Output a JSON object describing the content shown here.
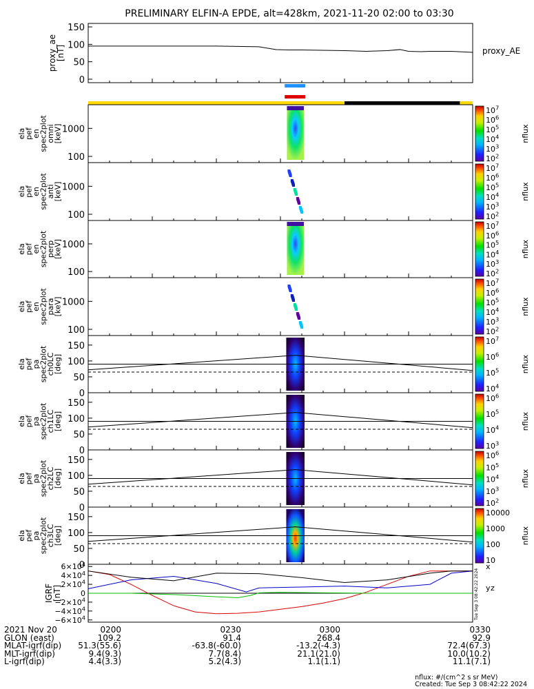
{
  "title": "PRELIMINARY ELFIN-A EPDE, alt=428km, 2021-11-20 02:00 to 03:30",
  "colors": {
    "ae_line": "#000000",
    "bar_blue": "#1e90ff",
    "bar_red": "#e00000",
    "sunlit": "#ffd800",
    "shadow": "#000000",
    "bx": "#e00000",
    "by": "#00c000",
    "bz": "#0000cc",
    "b_total": "#000000"
  },
  "chart_data": [
    {
      "type": "line",
      "id": "proxy_ae",
      "ylabel": "proxy_ae [nT]",
      "legend": "proxy_AE",
      "ylim": [
        -10,
        160
      ],
      "yticks": [
        "150",
        "100",
        "50",
        "0"
      ],
      "x_minutes": [
        0,
        10,
        20,
        30,
        40,
        44,
        47,
        50,
        55,
        60,
        65,
        70,
        73,
        75,
        78,
        80,
        85,
        90
      ],
      "values": [
        95,
        95,
        95,
        95,
        93,
        85,
        84,
        84,
        83,
        82,
        80,
        82,
        85,
        80,
        79,
        80,
        80,
        77
      ]
    },
    {
      "type": "heatmap",
      "id": "en_omni",
      "ylabel": "ela pef en spec2plot omni [keV]",
      "yscale": "log",
      "ylim": [
        60,
        7000
      ],
      "yticks": [
        "1000",
        "100"
      ],
      "cbar_labels": [
        "10^7",
        "10^6",
        "10^5",
        "10^4",
        "10^3",
        "10^2"
      ],
      "cbar_title": "nflux",
      "profile": "full"
    },
    {
      "type": "heatmap",
      "id": "en_anti",
      "ylabel": "ela pef en spec2plot anti [keV]",
      "yscale": "log",
      "ylim": [
        60,
        7000
      ],
      "yticks": [
        "1000",
        "100"
      ],
      "cbar_labels": [
        "10^7",
        "10^6",
        "10^5",
        "10^4",
        "10^3",
        "10^2"
      ],
      "cbar_title": "nflux",
      "profile": "sparse"
    },
    {
      "type": "heatmap",
      "id": "en_perp",
      "ylabel": "ela pef en spec2plot perp [keV]",
      "yscale": "log",
      "ylim": [
        60,
        7000
      ],
      "yticks": [
        "1000",
        "100"
      ],
      "cbar_labels": [
        "10^7",
        "10^6",
        "10^5",
        "10^4",
        "10^3",
        "10^2"
      ],
      "cbar_title": "nflux",
      "profile": "full"
    },
    {
      "type": "heatmap",
      "id": "en_para",
      "ylabel": "ela pef en spec2plot para [keV]",
      "yscale": "log",
      "ylim": [
        60,
        7000
      ],
      "yticks": [
        "1000",
        "100"
      ],
      "cbar_labels": [
        "10^7",
        "10^6",
        "10^5",
        "10^4",
        "10^3",
        "10^2"
      ],
      "cbar_title": "nflux",
      "profile": "sparse"
    },
    {
      "type": "heatmap",
      "id": "pa_ch0LC",
      "ylabel": "ela pef pa spec2plot ch0LC [deg]",
      "ylim": [
        0,
        180
      ],
      "yticks": [
        "150",
        "100",
        "50",
        "0"
      ],
      "cbar_labels": [
        "10^7",
        "10^6",
        "10^5",
        "10^4"
      ],
      "cbar_title": "nflux",
      "profile": "pa"
    },
    {
      "type": "heatmap",
      "id": "pa_ch1LC",
      "ylabel": "ela pef pa spec2plot ch1LC [deg]",
      "ylim": [
        0,
        180
      ],
      "yticks": [
        "150",
        "100",
        "50",
        "0"
      ],
      "cbar_labels": [
        "10^6",
        "10^5",
        "10^4",
        "10^3"
      ],
      "cbar_title": "nflux",
      "profile": "pa"
    },
    {
      "type": "heatmap",
      "id": "pa_ch2LC",
      "ylabel": "ela pef pa spec2plot ch2LC [deg]",
      "ylim": [
        0,
        180
      ],
      "yticks": [
        "150",
        "100",
        "50",
        "0"
      ],
      "cbar_labels": [
        "10^6",
        "10^5",
        "10^4",
        "10^3",
        "10^2"
      ],
      "cbar_title": "nflux",
      "profile": "pa2"
    },
    {
      "type": "heatmap",
      "id": "pa_ch3LC",
      "ylabel": "ela pef pa spec2plot ch3LC [deg]",
      "ylim": [
        0,
        180
      ],
      "yticks": [
        "150",
        "100",
        "50",
        "0"
      ],
      "cbar_labels": [
        "10000",
        "1000",
        "100",
        "10"
      ],
      "cbar_title": "nflux",
      "profile": "pa3"
    },
    {
      "type": "line",
      "id": "igrf",
      "ylabel": "IGRF [nT]",
      "ylim": [
        -65000,
        65000
      ],
      "yticks": [
        "6×10^4",
        "4×10^4",
        "2×10^4",
        "0",
        "−2×10^4",
        "−4×10^4",
        "−6×10^4"
      ],
      "series": [
        {
          "name": "x",
          "x_minutes": [
            0,
            5,
            10,
            15,
            20,
            25,
            30,
            35,
            40,
            45,
            50,
            55,
            60,
            65,
            70,
            75,
            80,
            85,
            90
          ],
          "values": [
            50000,
            42000,
            20000,
            -5000,
            -28000,
            -42000,
            -46000,
            -45000,
            -42000,
            -36000,
            -30000,
            -22000,
            -12000,
            2000,
            20000,
            38000,
            50000,
            50000,
            50000
          ]
        },
        {
          "name": "y",
          "x_minutes": [
            0,
            10,
            20,
            30,
            35,
            38,
            40,
            45,
            55,
            65,
            75,
            85,
            90
          ],
          "values": [
            0,
            0,
            -3000,
            -8000,
            -10000,
            -5000,
            1000,
            2000,
            1000,
            0,
            0,
            0,
            0
          ]
        },
        {
          "name": "z",
          "x_minutes": [
            0,
            10,
            20,
            30,
            37,
            40,
            50,
            60,
            70,
            80,
            85,
            90
          ],
          "values": [
            10000,
            30000,
            38000,
            22000,
            3000,
            12000,
            14000,
            16000,
            12000,
            20000,
            45000,
            50000
          ]
        },
        {
          "name": "total",
          "x_minutes": [
            0,
            10,
            20,
            30,
            40,
            50,
            60,
            70,
            80,
            85,
            90
          ],
          "values": [
            50000,
            36000,
            28000,
            45000,
            44000,
            35000,
            24000,
            30000,
            45000,
            50000,
            50000
          ]
        }
      ],
      "side_labels": [
        "x",
        "y",
        "z"
      ]
    }
  ],
  "heatmap_window": {
    "start_minute": 46.2,
    "end_minute": 50.8
  },
  "science_bars": {
    "start_minute": 46.0,
    "end_minute": 50.8
  },
  "sunlit": {
    "shadow_start_minute": 60,
    "shadow_end_minute": 87
  },
  "timestamp_side": "Tue Sep  3 08:42:22 2024",
  "footer": {
    "rows": [
      {
        "label": "2021 Nov 20",
        "values": [
          "0200",
          "0230",
          "0300",
          "0330"
        ]
      },
      {
        "label": "GLON (east)",
        "values": [
          "109.2",
          "91.4",
          "268.4",
          "92.9"
        ]
      },
      {
        "label": "MLAT-igrf(dip)",
        "values": [
          "51.3(55.6)",
          "-63.8(-60.0)",
          "-13.2(-4.3)",
          "72.4(67.3)"
        ]
      },
      {
        "label": "MLT-igrf(dip)",
        "values": [
          "9.4(9.3)",
          "7.7(8.4)",
          "21.1(21.0)",
          "10.0(10.2)"
        ]
      },
      {
        "label": "L-igrf(dip)",
        "values": [
          "4.4(3.3)",
          "5.2(4.3)",
          "1.1(1.1)",
          "11.1(7.1)"
        ]
      }
    ],
    "units_line": "nflux: #/(cm^2 s sr MeV)",
    "created_line": "Created: Tue Sep  3 08:42:22 2024"
  }
}
